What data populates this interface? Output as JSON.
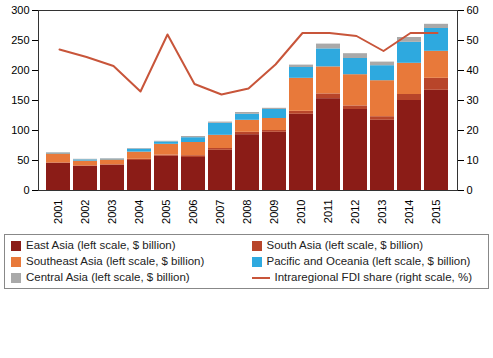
{
  "chart_data": {
    "type": "bar",
    "stacked": true,
    "legend": "bottom",
    "categories": [
      "2001",
      "2002",
      "2003",
      "2004",
      "2005",
      "2006",
      "2007",
      "2008",
      "2009",
      "2010",
      "2011",
      "2012",
      "2013",
      "2014",
      "2015"
    ],
    "series": [
      {
        "name": "East Asia (left scale, $ billion)",
        "color": "#8b1c17",
        "values": [
          45,
          40,
          42,
          50,
          57,
          55,
          67,
          93,
          97,
          127,
          153,
          135,
          117,
          150,
          167
        ]
      },
      {
        "name": "South Asia (left scale, $ billion)",
        "color": "#b8452a",
        "values": [
          1,
          1,
          1,
          2,
          2,
          3,
          3,
          4,
          3,
          5,
          8,
          6,
          6,
          10,
          20
        ]
      },
      {
        "name": "Southeast Asia (left scale, $ billion)",
        "color": "#e8793a",
        "values": [
          15,
          8,
          8,
          12,
          18,
          22,
          22,
          20,
          20,
          55,
          45,
          52,
          60,
          52,
          45
        ]
      },
      {
        "name": "Pacific and Oceania (left scale, $ billion)",
        "color": "#2ea9df",
        "values": [
          1,
          2,
          1,
          5,
          4,
          8,
          20,
          10,
          15,
          18,
          30,
          27,
          25,
          35,
          38
        ]
      },
      {
        "name": "Central Asia (left scale, $ billion)",
        "color": "#a9a9a9",
        "values": [
          1,
          1,
          1,
          1,
          1,
          2,
          2,
          3,
          2,
          4,
          8,
          8,
          6,
          8,
          7
        ]
      },
      {
        "name": "Intraregional FDI share (right scale, %)",
        "color": "#c8553a",
        "type": "line",
        "axis": "y2",
        "values": [
          47,
          44.5,
          41.5,
          33,
          52,
          35.5,
          32,
          34,
          42,
          52.5,
          52.5,
          51.5,
          46.5,
          52.5,
          52.5
        ]
      }
    ],
    "ylim": [
      0,
      300
    ],
    "yticks": [
      0,
      50,
      100,
      150,
      200,
      250,
      300
    ],
    "y2lim": [
      0,
      60
    ],
    "y2ticks": [
      0,
      10,
      20,
      30,
      40,
      50,
      60
    ]
  }
}
